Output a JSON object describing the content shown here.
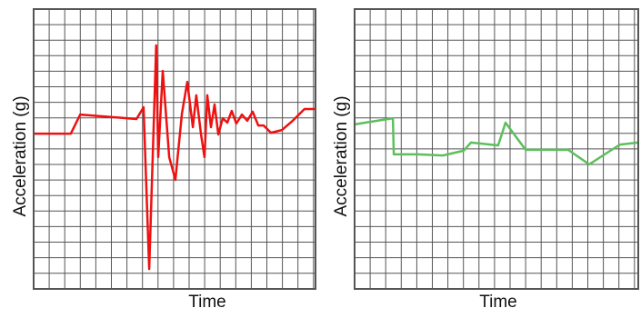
{
  "chart_data": [
    {
      "type": "line",
      "xlabel": "Time",
      "ylabel": "Acceleration (g)",
      "xlim": [
        0,
        100
      ],
      "ylim": [
        0,
        100
      ],
      "grid": true,
      "series": [
        {
          "color": "#ee1111",
          "x": [
            0,
            13.2,
            16.5,
            36.5,
            39.0,
            41.0,
            43.5,
            44.2,
            45.8,
            48.1,
            50.3,
            52.6,
            54.5,
            56.5,
            57.7,
            59.4,
            60.6,
            61.6,
            62.9,
            64.2,
            65.5,
            67.1,
            68.7,
            70.3,
            71.9,
            73.9,
            75.8,
            77.7,
            79.7,
            81.6,
            84.2,
            88.1,
            91.9,
            96.1,
            99.7
          ],
          "values": [
            55.5,
            55.5,
            62.3,
            60.7,
            64.9,
            7.1,
            87.0,
            47.1,
            77.9,
            47.1,
            39.0,
            62.7,
            74.0,
            57.8,
            69.2,
            55.2,
            47.1,
            69.2,
            57.8,
            65.9,
            55.2,
            61.0,
            59.4,
            63.6,
            59.1,
            62.3,
            60.1,
            63.3,
            58.4,
            58.4,
            55.8,
            56.8,
            60.1,
            64.3,
            64.3
          ]
        }
      ]
    },
    {
      "type": "line",
      "xlabel": "Time",
      "ylabel": "Acceleration (g)",
      "xlim": [
        0,
        100
      ],
      "ylim": [
        0,
        100
      ],
      "grid": true,
      "series": [
        {
          "color": "#5cbf5c",
          "x": [
            0,
            13.5,
            13.8,
            22.4,
            31.1,
            38.5,
            41.0,
            50.6,
            53.2,
            60.3,
            75.3,
            82.7,
            89.1,
            93.6,
            100
          ],
          "values": [
            58.8,
            61.0,
            48.1,
            48.1,
            47.7,
            49.4,
            52.3,
            51.3,
            59.4,
            49.7,
            49.7,
            44.5,
            48.7,
            51.6,
            52.3
          ]
        }
      ]
    }
  ]
}
